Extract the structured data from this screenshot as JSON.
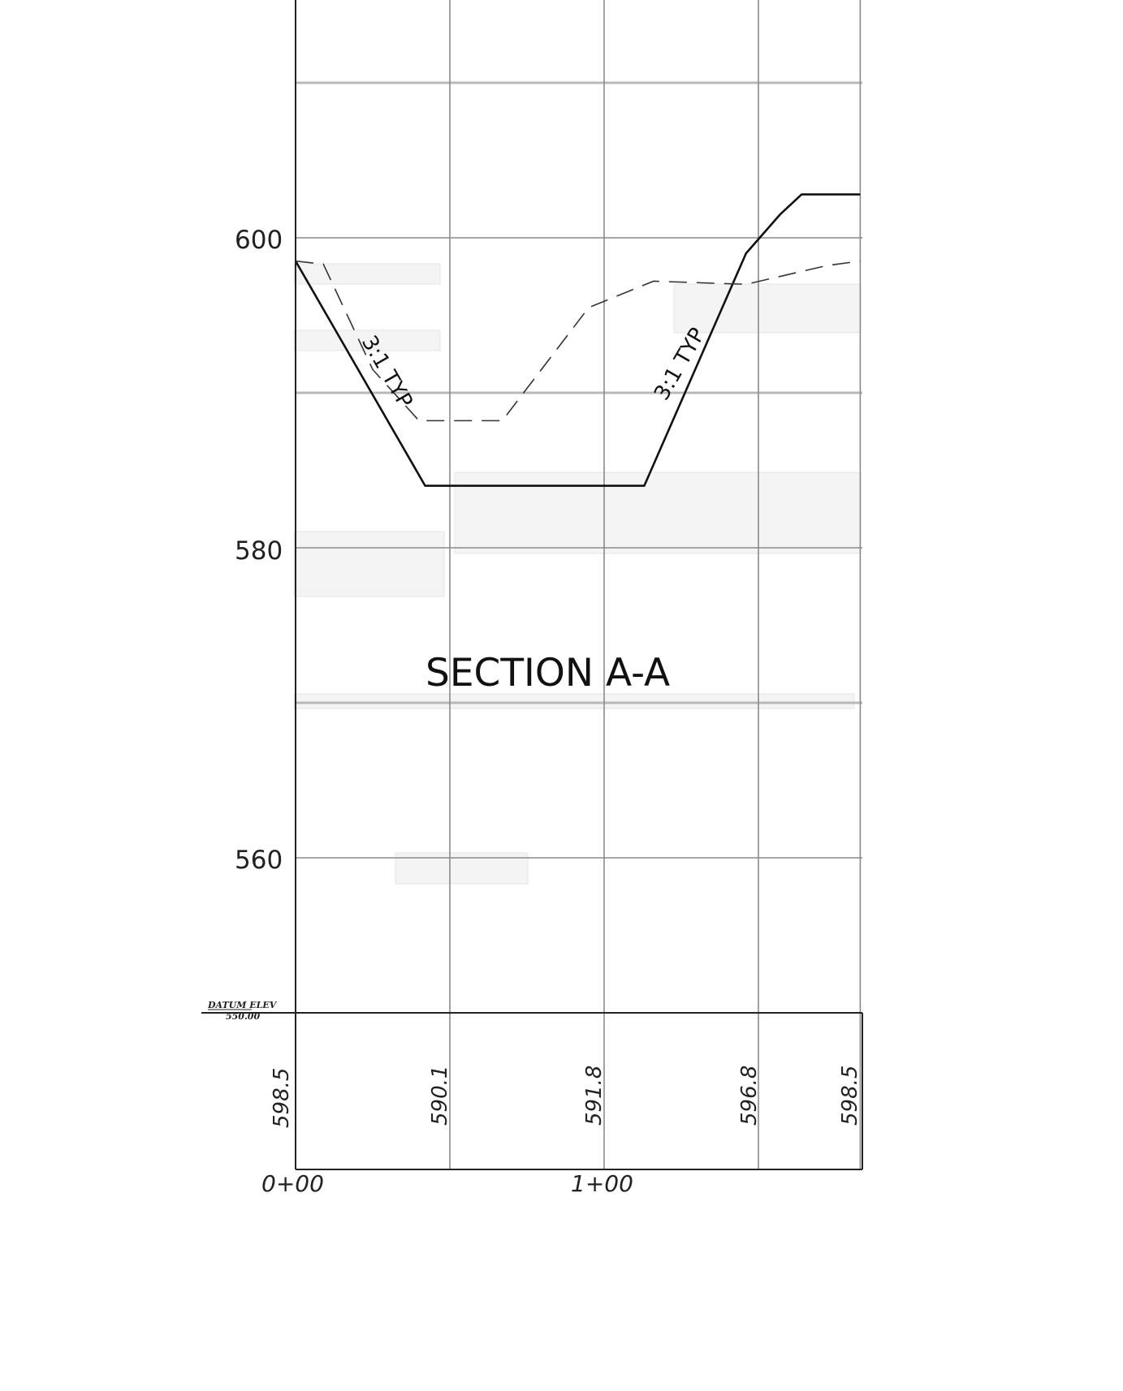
{
  "title": "SECTION A-A",
  "slope_labels": {
    "left": "3:1 TYP",
    "right": "3:1 TYP"
  },
  "datum": {
    "label": "DATUM ELEV",
    "value": "550.00"
  },
  "elevation_axis": {
    "ticks": [
      "600",
      "580",
      "560"
    ]
  },
  "station_axis": {
    "ticks": [
      "0+00",
      "1+00"
    ]
  },
  "ground_elevations": [
    "598.5",
    "590.1",
    "591.8",
    "596.8",
    "598.5"
  ],
  "chart_data": {
    "type": "line",
    "title": "SECTION A-A",
    "xlabel": "",
    "ylabel": "",
    "x_ticks": [
      "0+00",
      "1+00"
    ],
    "y_ticks": [
      600,
      580,
      560
    ],
    "ylim": [
      550,
      620
    ],
    "xlim": [
      0,
      183
    ],
    "datum_elevation": 550.0,
    "grid": true,
    "series": [
      {
        "style": "solid",
        "x": [
          0,
          42,
          113,
          146,
          157,
          164,
          183
        ],
        "y": [
          598.5,
          584,
          584,
          599,
          601.5,
          602.8,
          602.8
        ]
      },
      {
        "style": "dashed",
        "x": [
          0,
          9,
          25,
          40,
          67,
          95,
          116,
          146,
          172,
          183
        ],
        "y": [
          598.5,
          598.3,
          591.5,
          588.2,
          588.2,
          595.5,
          597.2,
          597.0,
          598.2,
          598.5
        ]
      }
    ],
    "ground_elevations": [
      {
        "x": 0,
        "value": 598.5
      },
      {
        "x": 50,
        "value": 590.1
      },
      {
        "x": 100,
        "value": 591.8
      },
      {
        "x": 150,
        "value": 596.8
      },
      {
        "x": 183,
        "value": 598.5
      }
    ]
  }
}
